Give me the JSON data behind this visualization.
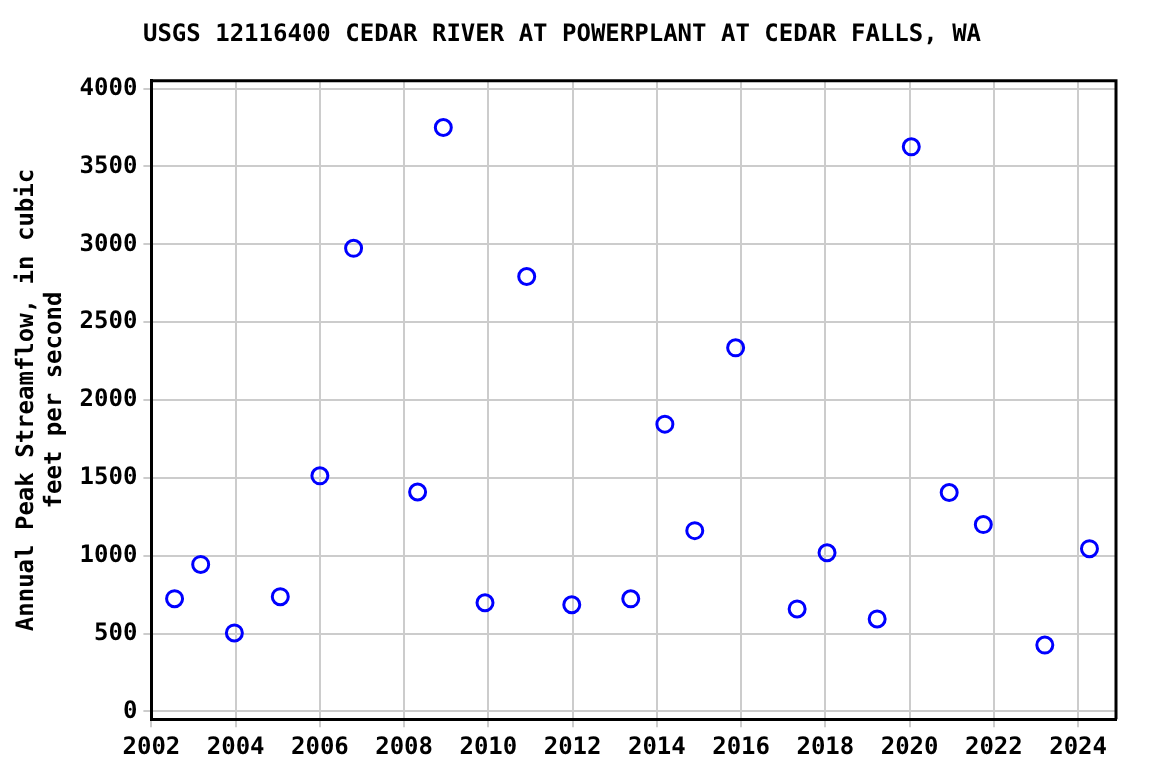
{
  "chart_data": {
    "type": "scatter",
    "title": "USGS 12116400 CEDAR RIVER AT POWERPLANT AT CEDAR FALLS, WA",
    "ylabel": "Annual Peak Streamflow, in cubic feet per second",
    "x": [
      2002.55,
      2003.17,
      2003.97,
      2005.06,
      2006.0,
      2006.8,
      2008.32,
      2008.93,
      2009.92,
      2010.91,
      2011.98,
      2013.38,
      2014.19,
      2014.9,
      2015.87,
      2017.33,
      2018.04,
      2019.23,
      2020.04,
      2020.94,
      2021.75,
      2023.21,
      2024.27
    ],
    "series": [
      {
        "color": "#0000ff",
        "values": [
          724,
          944,
          504,
          737,
          1513,
          2974,
          1409,
          3750,
          698,
          2793,
          685,
          723,
          1845,
          1161,
          2335,
          658,
          1019,
          594,
          3626,
          1406,
          1200,
          426,
          1045
        ]
      }
    ],
    "xlim": [
      2002,
      2024.9
    ],
    "xticks": [
      2002,
      2004,
      2006,
      2008,
      2010,
      2012,
      2014,
      2016,
      2018,
      2020,
      2022,
      2024
    ],
    "ylim": [
      -50,
      4050
    ],
    "yticks": [
      0,
      500,
      1000,
      1500,
      2000,
      2500,
      3000,
      3500,
      4000
    ],
    "grid": true,
    "legend": false,
    "marker": "circle"
  }
}
